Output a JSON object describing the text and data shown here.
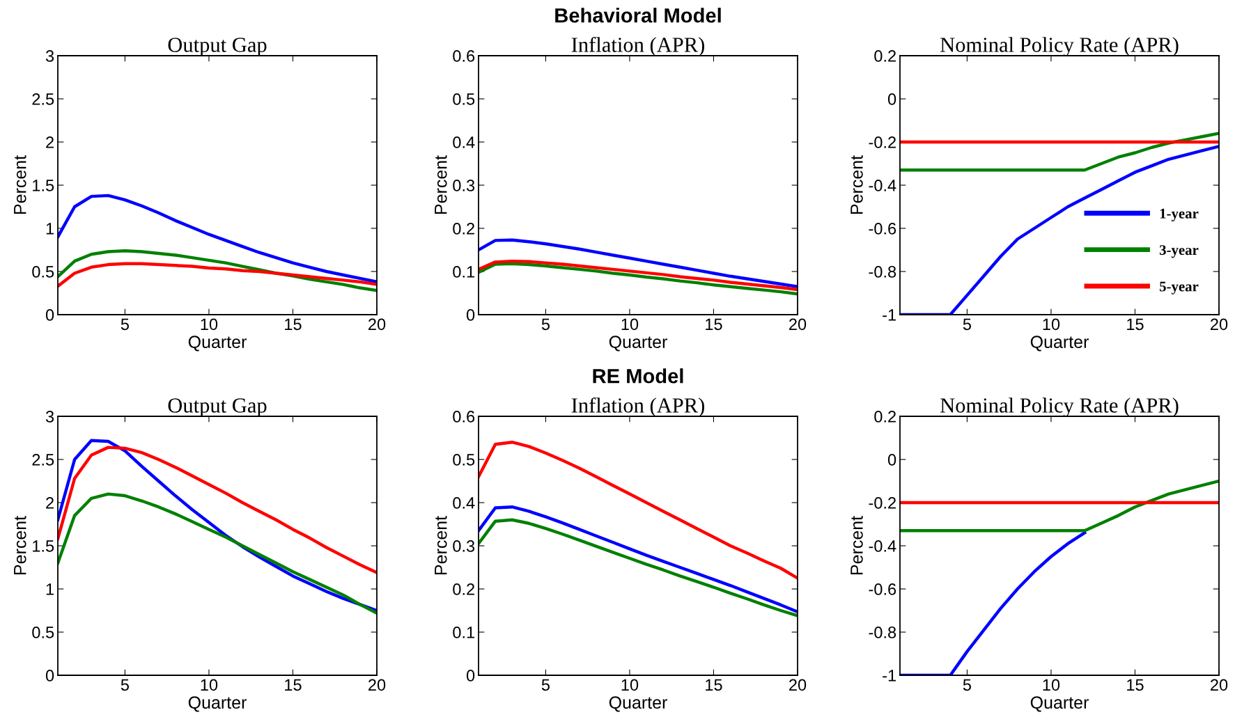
{
  "chart_data": [
    {
      "type": "line",
      "title": "Output Gap",
      "xlabel": "Quarter",
      "ylabel": "Percent",
      "x": [
        1,
        2,
        3,
        4,
        5,
        6,
        7,
        8,
        9,
        10,
        11,
        12,
        13,
        14,
        15,
        16,
        17,
        18,
        19,
        20
      ],
      "xlim": [
        1,
        20
      ],
      "xticks": [
        5,
        10,
        15,
        20
      ],
      "ylim": [
        0,
        3
      ],
      "yticks": [
        0,
        0.5,
        1,
        1.5,
        2,
        2.5,
        3
      ],
      "grid": false,
      "legend": false,
      "series": [
        {
          "color": "#0000ff",
          "values": [
            0.9,
            1.25,
            1.37,
            1.38,
            1.33,
            1.26,
            1.18,
            1.09,
            1.01,
            0.93,
            0.86,
            0.79,
            0.72,
            0.66,
            0.6,
            0.55,
            0.5,
            0.46,
            0.42,
            0.38
          ]
        },
        {
          "color": "#008000",
          "values": [
            0.44,
            0.62,
            0.7,
            0.73,
            0.74,
            0.73,
            0.71,
            0.69,
            0.66,
            0.63,
            0.6,
            0.56,
            0.52,
            0.48,
            0.45,
            0.41,
            0.38,
            0.35,
            0.31,
            0.28
          ]
        },
        {
          "color": "#ff0000",
          "values": [
            0.33,
            0.48,
            0.55,
            0.58,
            0.59,
            0.59,
            0.58,
            0.57,
            0.56,
            0.54,
            0.53,
            0.51,
            0.5,
            0.48,
            0.46,
            0.44,
            0.42,
            0.4,
            0.38,
            0.35
          ]
        }
      ]
    },
    {
      "type": "line",
      "title": "Behavioral Model",
      "subtitle": "Inflation (APR)",
      "xlabel": "Quarter",
      "ylabel": "Percent",
      "x": [
        1,
        2,
        3,
        4,
        5,
        6,
        7,
        8,
        9,
        10,
        11,
        12,
        13,
        14,
        15,
        16,
        17,
        18,
        19,
        20
      ],
      "xlim": [
        1,
        20
      ],
      "xticks": [
        5,
        10,
        15,
        20
      ],
      "ylim": [
        0,
        0.6
      ],
      "yticks": [
        0,
        0.1,
        0.2,
        0.3,
        0.4,
        0.5,
        0.6
      ],
      "grid": false,
      "legend": false,
      "series": [
        {
          "color": "#0000ff",
          "values": [
            0.15,
            0.172,
            0.173,
            0.169,
            0.164,
            0.158,
            0.152,
            0.145,
            0.138,
            0.131,
            0.124,
            0.117,
            0.11,
            0.103,
            0.096,
            0.089,
            0.083,
            0.077,
            0.071,
            0.065
          ]
        },
        {
          "color": "#008000",
          "values": [
            0.098,
            0.117,
            0.118,
            0.116,
            0.113,
            0.109,
            0.105,
            0.101,
            0.096,
            0.092,
            0.087,
            0.083,
            0.078,
            0.074,
            0.069,
            0.065,
            0.061,
            0.057,
            0.053,
            0.048
          ]
        },
        {
          "color": "#ff0000",
          "values": [
            0.105,
            0.122,
            0.124,
            0.123,
            0.12,
            0.117,
            0.113,
            0.109,
            0.105,
            0.101,
            0.097,
            0.093,
            0.088,
            0.084,
            0.08,
            0.075,
            0.071,
            0.067,
            0.063,
            0.058
          ]
        }
      ]
    },
    {
      "type": "line",
      "title": "Nominal Policy Rate (APR)",
      "xlabel": "Quarter",
      "ylabel": "Percent",
      "x": [
        1,
        2,
        3,
        4,
        5,
        6,
        7,
        8,
        9,
        10,
        11,
        12,
        13,
        14,
        15,
        16,
        17,
        18,
        19,
        20
      ],
      "xlim": [
        1,
        20
      ],
      "xticks": [
        5,
        10,
        15,
        20
      ],
      "ylim": [
        -1,
        0.2
      ],
      "yticks": [
        -1,
        -0.8,
        -0.6,
        -0.4,
        -0.2,
        0,
        0.2
      ],
      "grid": false,
      "legend": "bottom right",
      "series": [
        {
          "name": "1-year",
          "color": "#0000ff",
          "values": [
            -1,
            -1,
            -1,
            -1,
            -0.91,
            -0.82,
            -0.73,
            -0.65,
            -0.6,
            -0.55,
            -0.5,
            -0.46,
            -0.42,
            -0.38,
            -0.34,
            -0.31,
            -0.28,
            -0.26,
            -0.24,
            -0.22
          ]
        },
        {
          "name": "3-year",
          "color": "#008000",
          "values": [
            -0.33,
            -0.33,
            -0.33,
            -0.33,
            -0.33,
            -0.33,
            -0.33,
            -0.33,
            -0.33,
            -0.33,
            -0.33,
            -0.33,
            -0.3,
            -0.27,
            -0.25,
            -0.225,
            -0.205,
            -0.19,
            -0.175,
            -0.16
          ]
        },
        {
          "name": "5-year",
          "color": "#ff0000",
          "values": [
            -0.2,
            -0.2,
            -0.2,
            -0.2,
            -0.2,
            -0.2,
            -0.2,
            -0.2,
            -0.2,
            -0.2,
            -0.2,
            -0.2,
            -0.2,
            -0.2,
            -0.2,
            -0.2,
            -0.2,
            -0.2,
            -0.2,
            -0.2
          ]
        }
      ]
    },
    {
      "type": "line",
      "title": "Output Gap",
      "xlabel": "Quarter",
      "ylabel": "Percent",
      "x": [
        1,
        2,
        3,
        4,
        5,
        6,
        7,
        8,
        9,
        10,
        11,
        12,
        13,
        14,
        15,
        16,
        17,
        18,
        19,
        20
      ],
      "xlim": [
        1,
        20
      ],
      "xticks": [
        5,
        10,
        15,
        20
      ],
      "ylim": [
        0,
        3
      ],
      "yticks": [
        0,
        0.5,
        1,
        1.5,
        2,
        2.5,
        3
      ],
      "grid": false,
      "legend": false,
      "series": [
        {
          "color": "#0000ff",
          "values": [
            1.8,
            2.5,
            2.72,
            2.71,
            2.6,
            2.42,
            2.25,
            2.08,
            1.92,
            1.77,
            1.62,
            1.49,
            1.37,
            1.26,
            1.15,
            1.06,
            0.97,
            0.89,
            0.82,
            0.75
          ]
        },
        {
          "color": "#008000",
          "values": [
            1.3,
            1.85,
            2.05,
            2.1,
            2.08,
            2.02,
            1.95,
            1.87,
            1.78,
            1.69,
            1.6,
            1.5,
            1.4,
            1.3,
            1.2,
            1.11,
            1.02,
            0.93,
            0.82,
            0.72
          ]
        },
        {
          "color": "#ff0000",
          "values": [
            1.58,
            2.28,
            2.55,
            2.64,
            2.63,
            2.58,
            2.5,
            2.41,
            2.31,
            2.21,
            2.11,
            2.0,
            1.9,
            1.8,
            1.69,
            1.59,
            1.48,
            1.38,
            1.28,
            1.19
          ]
        }
      ]
    },
    {
      "type": "line",
      "title": "RE Model",
      "subtitle": "Inflation (APR)",
      "xlabel": "Quarter",
      "ylabel": "Percent",
      "x": [
        1,
        2,
        3,
        4,
        5,
        6,
        7,
        8,
        9,
        10,
        11,
        12,
        13,
        14,
        15,
        16,
        17,
        18,
        19,
        20
      ],
      "xlim": [
        1,
        20
      ],
      "xticks": [
        5,
        10,
        15,
        20
      ],
      "ylim": [
        0,
        0.6
      ],
      "yticks": [
        0,
        0.1,
        0.2,
        0.3,
        0.4,
        0.5,
        0.6
      ],
      "grid": false,
      "legend": false,
      "series": [
        {
          "color": "#0000ff",
          "values": [
            0.335,
            0.388,
            0.39,
            0.38,
            0.367,
            0.353,
            0.338,
            0.323,
            0.308,
            0.293,
            0.278,
            0.264,
            0.25,
            0.236,
            0.222,
            0.208,
            0.193,
            0.178,
            0.163,
            0.147
          ]
        },
        {
          "color": "#008000",
          "values": [
            0.305,
            0.357,
            0.36,
            0.352,
            0.34,
            0.327,
            0.313,
            0.299,
            0.285,
            0.271,
            0.257,
            0.244,
            0.23,
            0.217,
            0.204,
            0.19,
            0.177,
            0.163,
            0.15,
            0.138
          ]
        },
        {
          "color": "#ff0000",
          "values": [
            0.46,
            0.535,
            0.54,
            0.53,
            0.515,
            0.498,
            0.48,
            0.46,
            0.44,
            0.42,
            0.4,
            0.38,
            0.36,
            0.34,
            0.32,
            0.3,
            0.283,
            0.265,
            0.248,
            0.225
          ]
        }
      ]
    },
    {
      "type": "line",
      "title": "Nominal Policy Rate (APR)",
      "xlabel": "Quarter",
      "ylabel": "Percent",
      "x": [
        1,
        2,
        3,
        4,
        5,
        6,
        7,
        8,
        9,
        10,
        11,
        12,
        13,
        14,
        15,
        16,
        17,
        18,
        19,
        20
      ],
      "xlim": [
        1,
        20
      ],
      "xticks": [
        5,
        10,
        15,
        20
      ],
      "ylim": [
        -1,
        0.2
      ],
      "yticks": [
        -1,
        -0.8,
        -0.6,
        -0.4,
        -0.2,
        0,
        0.2
      ],
      "grid": false,
      "legend": false,
      "series": [
        {
          "color": "#0000ff",
          "values": [
            -1,
            -1,
            -1,
            -1,
            -0.89,
            -0.79,
            -0.69,
            -0.6,
            -0.52,
            -0.45,
            -0.39,
            -0.34,
            null,
            null,
            null,
            null,
            null,
            null,
            null,
            null
          ]
        },
        {
          "color": "#008000",
          "values": [
            -0.33,
            -0.33,
            -0.33,
            -0.33,
            -0.33,
            -0.33,
            -0.33,
            -0.33,
            -0.33,
            -0.33,
            -0.33,
            -0.33,
            -0.295,
            -0.26,
            -0.22,
            -0.19,
            -0.16,
            -0.14,
            -0.12,
            -0.1
          ]
        },
        {
          "color": "#ff0000",
          "values": [
            -0.2,
            -0.2,
            -0.2,
            -0.2,
            -0.2,
            -0.2,
            -0.2,
            -0.2,
            -0.2,
            -0.2,
            -0.2,
            -0.2,
            -0.2,
            -0.2,
            -0.2,
            -0.2,
            -0.2,
            -0.2,
            -0.2,
            -0.2
          ]
        }
      ]
    }
  ]
}
